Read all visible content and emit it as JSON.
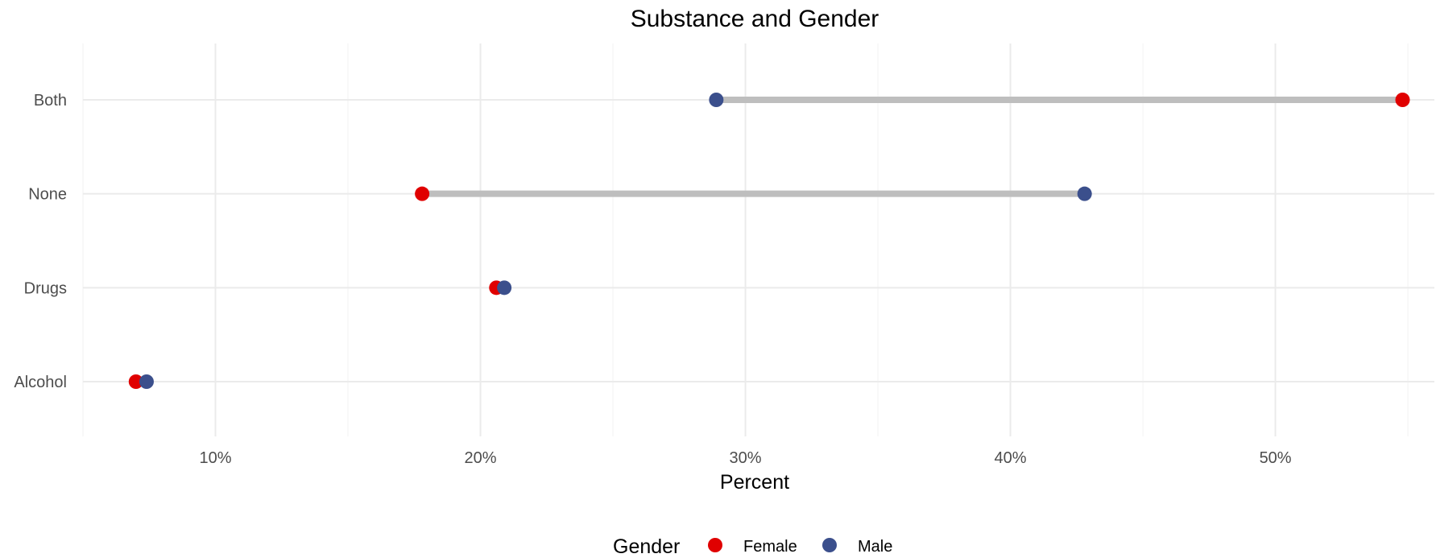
{
  "chart_data": {
    "type": "dumbbell",
    "title": "Substance and Gender",
    "xlabel": "Percent",
    "ylabel": "",
    "xlim": [
      5,
      56
    ],
    "x_ticks": [
      10,
      20,
      30,
      40,
      50
    ],
    "x_tick_labels": [
      "10%",
      "20%",
      "30%",
      "40%",
      "50%"
    ],
    "x_minor_ticks": [
      5,
      15,
      25,
      35,
      45,
      55
    ],
    "categories": [
      "Alcohol",
      "Drugs",
      "None",
      "Both"
    ],
    "series": [
      {
        "name": "Female",
        "color": "#e00000",
        "values": [
          7.0,
          20.6,
          17.8,
          54.8
        ]
      },
      {
        "name": "Male",
        "color": "#3b4f8c",
        "values": [
          7.4,
          20.9,
          42.8,
          28.9
        ]
      }
    ],
    "segment_color": "#bebebe",
    "grid": true,
    "legend": {
      "title": "Gender",
      "position": "bottom",
      "items": [
        "Female",
        "Male"
      ]
    }
  }
}
